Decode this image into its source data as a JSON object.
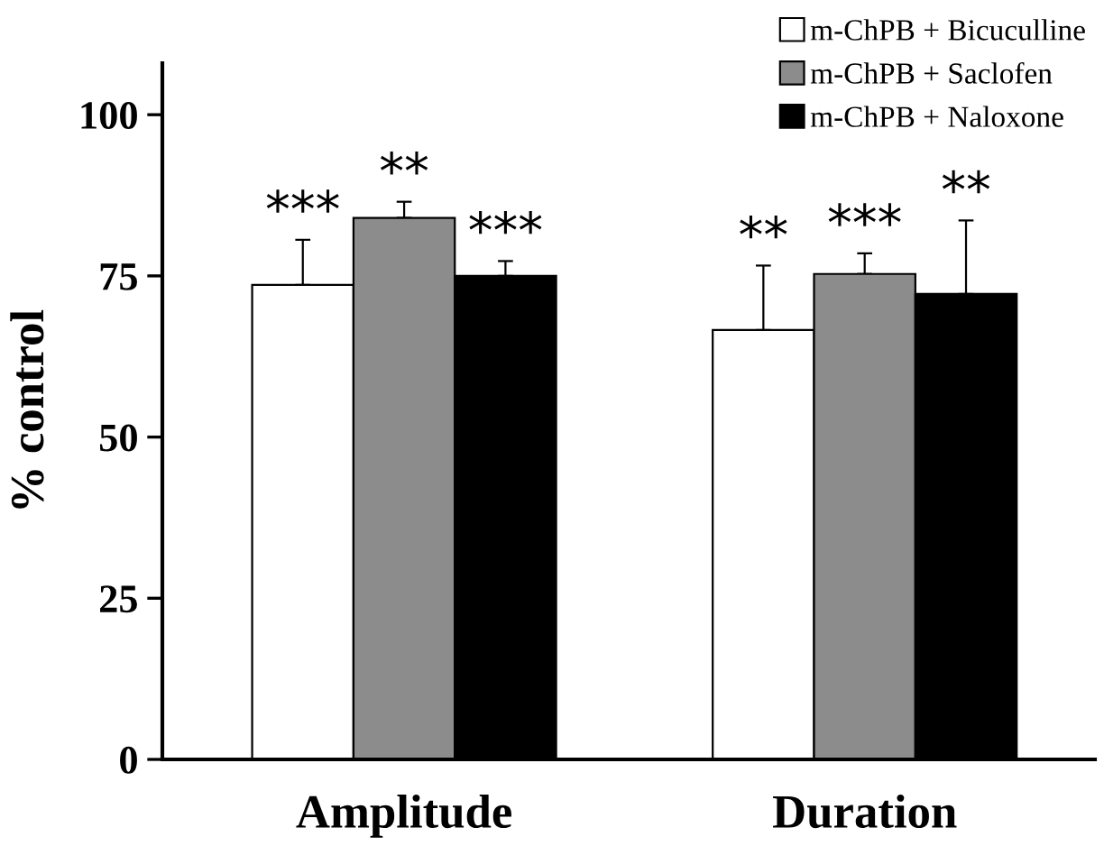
{
  "chart_data": {
    "type": "bar",
    "ylabel": "% control",
    "categories": [
      "Amplitude",
      "Duration"
    ],
    "series": [
      {
        "name": "m-ChPB + Bicuculline",
        "color": "#ffffff",
        "values": [
          73.6,
          66.6
        ],
        "errors": [
          7.0,
          10.0
        ]
      },
      {
        "name": "m-ChPB + Saclofen",
        "color": "#8c8c8c",
        "values": [
          84.0,
          75.3
        ],
        "errors": [
          2.5,
          3.2
        ]
      },
      {
        "name": "m-ChPB + Naloxone",
        "color": "#000000",
        "values": [
          75.0,
          72.2
        ],
        "errors": [
          2.3,
          11.4
        ]
      }
    ],
    "ylim": [
      0,
      108
    ],
    "yticks": [
      0,
      25,
      50,
      75,
      100
    ],
    "grid": false,
    "legend": "top right",
    "annotations": [
      "***",
      "**",
      "***",
      "**",
      "***",
      "**"
    ]
  }
}
